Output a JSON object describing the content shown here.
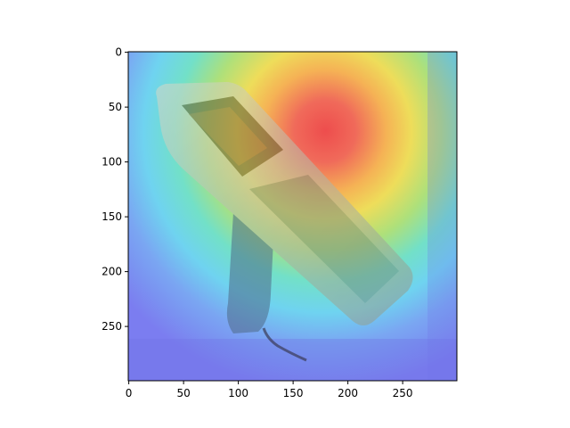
{
  "figure": {
    "subject": "handheld-barcode-scanner",
    "overlay": "attention-heatmap",
    "colormap": "jet"
  },
  "axes": {
    "x": {
      "range": [
        0,
        299
      ],
      "ticks": [
        "0",
        "50",
        "100",
        "150",
        "200",
        "250"
      ]
    },
    "y": {
      "range": [
        0,
        299
      ],
      "ticks": [
        "0",
        "50",
        "100",
        "150",
        "200",
        "250"
      ],
      "inverted": true
    }
  },
  "colors": {
    "frame": "#000000",
    "background": "#ffffff",
    "cold": "#7a7cf0",
    "hot": "#f05a5a"
  }
}
